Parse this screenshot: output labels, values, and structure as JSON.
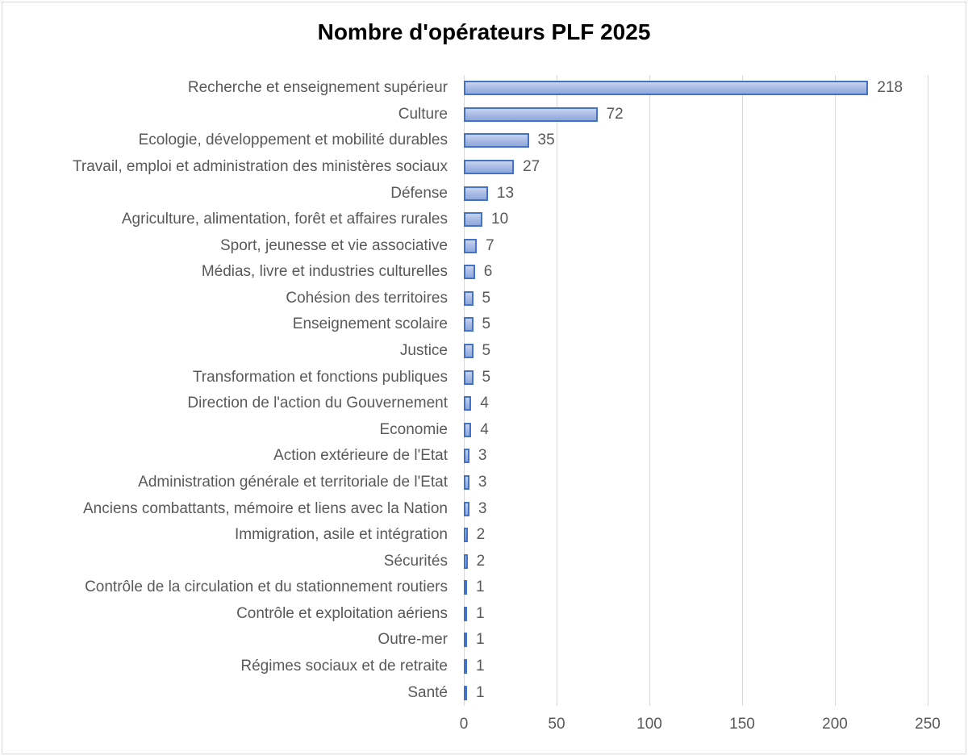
{
  "chart_data": {
    "type": "bar",
    "orientation": "horizontal",
    "title": "Nombre d'opérateurs PLF 2025",
    "xlabel": "",
    "ylabel": "",
    "xlim": [
      0,
      250
    ],
    "xticks": [
      "0",
      "50",
      "100",
      "150",
      "200",
      "250"
    ],
    "grid": true,
    "legend": false,
    "categories": [
      "Recherche et enseignement supérieur",
      "Culture",
      "Ecologie, développement et mobilité durables",
      "Travail, emploi et administration des ministères sociaux",
      "Défense",
      "Agriculture, alimentation, forêt et affaires rurales",
      "Sport, jeunesse et vie associative",
      "Médias, livre et industries culturelles",
      "Cohésion des territoires",
      "Enseignement scolaire",
      "Justice",
      "Transformation et fonctions publiques",
      "Direction de l'action du Gouvernement",
      "Economie",
      "Action extérieure de l'Etat",
      "Administration générale et territoriale de l'Etat",
      "Anciens combattants, mémoire et liens avec la Nation",
      "Immigration, asile et intégration",
      "Sécurités",
      "Contrôle de la circulation et du stationnement routiers",
      "Contrôle et exploitation aériens",
      "Outre-mer",
      "Régimes sociaux et de retraite",
      "Santé"
    ],
    "values": [
      218,
      72,
      35,
      27,
      13,
      10,
      7,
      6,
      5,
      5,
      5,
      5,
      4,
      4,
      3,
      3,
      3,
      2,
      2,
      1,
      1,
      1,
      1,
      1
    ],
    "colors": {
      "bar_fill_top": "#c9d4ef",
      "bar_fill_bottom": "#8fa8db",
      "bar_border": "#4472c4",
      "gridline": "#d9d9d9",
      "label_text": "#595959",
      "title_text": "#000000",
      "background": "#ffffff"
    }
  }
}
